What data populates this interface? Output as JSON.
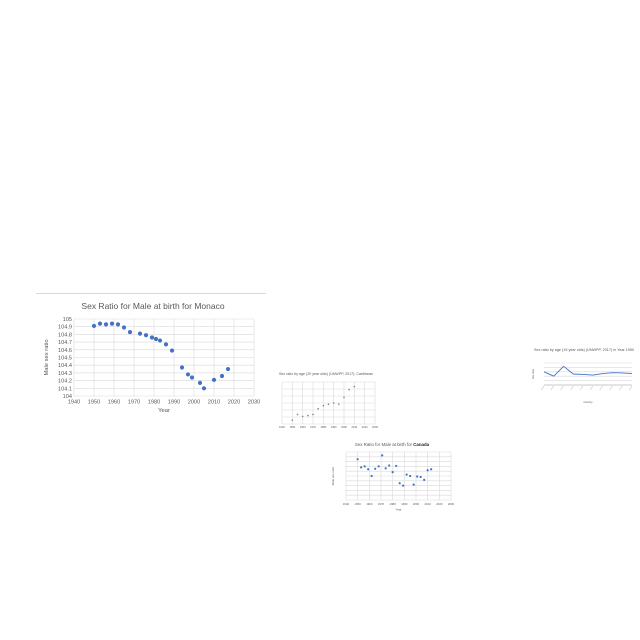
{
  "chart_data": [
    {
      "type": "scatter",
      "title": "Sex Ratio for Male at birth for Monaco",
      "xlabel": "Year",
      "ylabel": "Male sex ratio",
      "xlim": [
        1940,
        2030
      ],
      "ylim": [
        104,
        105
      ],
      "x_ticks": [
        "1940",
        "1950",
        "1960",
        "1970",
        "1980",
        "1990",
        "2000",
        "2010",
        "2020",
        "2030"
      ],
      "y_ticks": [
        "104",
        "104.1",
        "104.2",
        "104.3",
        "104.4",
        "104.5",
        "104.6",
        "104.7",
        "104.8",
        "104.9",
        "105"
      ],
      "grid": true,
      "color": "#4472c4",
      "x": [
        1950,
        1953,
        1956,
        1959,
        1962,
        1965,
        1968,
        1973,
        1976,
        1979,
        1981,
        1983,
        1986,
        1989,
        1994,
        1997,
        1999,
        2003,
        2005,
        2010,
        2014,
        2017
      ],
      "y": [
        104.91,
        104.94,
        104.93,
        104.94,
        104.93,
        104.89,
        104.83,
        104.81,
        104.79,
        104.76,
        104.74,
        104.72,
        104.67,
        104.59,
        104.37,
        104.28,
        104.24,
        104.17,
        104.1,
        104.21,
        104.26,
        104.35
      ]
    },
    {
      "type": "scatter",
      "title": "Sex ratio by age (20 year olds) (UNWPP, 2017): Caribbean",
      "xlabel": "",
      "ylabel": "",
      "xlim": [
        1940,
        2030
      ],
      "ylim": [
        0,
        1.1
      ],
      "x_ticks": [
        "1940",
        "1950",
        "1960",
        "1970",
        "1980",
        "1990",
        "2000",
        "2010",
        "2020",
        "2030"
      ],
      "y_ticks": [
        "",
        "",
        "",
        "",
        "",
        "",
        ""
      ],
      "grid": true,
      "color": "#7f7f7f",
      "x": [
        1950,
        1955,
        1960,
        1965,
        1970,
        1975,
        1980,
        1985,
        1990,
        1995,
        2000,
        2005,
        2010
      ],
      "y": [
        0.1,
        0.25,
        0.2,
        0.22,
        0.25,
        0.4,
        0.48,
        0.52,
        0.55,
        0.52,
        0.7,
        0.9,
        0.98
      ]
    },
    {
      "type": "scatter",
      "title_prefix": "Sex Ratio for Male at birth for ",
      "title_bold": "Canada",
      "xlabel": "Year",
      "ylabel": "Male sex ratio",
      "xlim": [
        1940,
        2030
      ],
      "ylim": [
        0,
        10
      ],
      "x_ticks": [
        "1940",
        "1950",
        "1960",
        "1970",
        "1980",
        "1990",
        "2000",
        "2010",
        "2020",
        "2030"
      ],
      "y_ticks": [
        "",
        "",
        "",
        "",
        "",
        "",
        "",
        "",
        "",
        "",
        ""
      ],
      "grid": true,
      "color": "#4472c4",
      "x": [
        1950,
        1953,
        1956,
        1959,
        1962,
        1965,
        1968,
        1971,
        1974,
        1977,
        1980,
        1983,
        1986,
        1989,
        1992,
        1995,
        1998,
        2001,
        2004,
        2007,
        2010,
        2013
      ],
      "y": [
        8.5,
        6.8,
        7.0,
        6.4,
        5.0,
        6.5,
        7.0,
        9.3,
        6.6,
        7.2,
        5.8,
        7.1,
        3.5,
        3.0,
        5.3,
        5.0,
        3.2,
        4.9,
        4.8,
        4.2,
        6.2,
        6.4
      ]
    },
    {
      "type": "line",
      "title": "Sex ratio by age (15 year olds) (UNWPP, 2017) in Year 1950",
      "xlabel": "Country",
      "ylabel": "Sex ratio",
      "ylim": [
        0,
        1
      ],
      "categories": [
        "",
        "",
        "",
        "",
        "",
        "",
        "",
        "",
        "",
        ""
      ],
      "color": "#4472c4",
      "values": [
        0.6,
        0.4,
        0.85,
        0.5,
        0.48,
        0.45,
        0.52,
        0.56,
        0.55,
        0.52
      ]
    }
  ]
}
